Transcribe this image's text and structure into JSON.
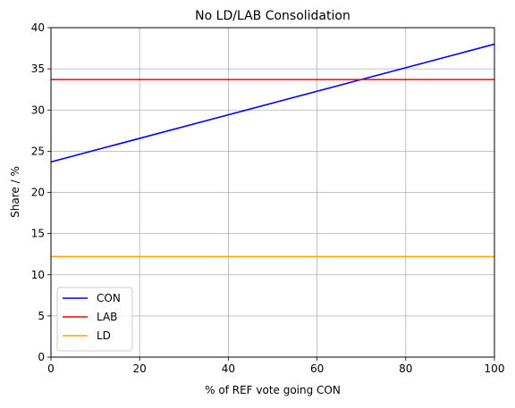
{
  "chart_data": {
    "type": "line",
    "title": "No LD/LAB Consolidation",
    "xlabel": "% of REF vote going CON",
    "ylabel": "Share / %",
    "xlim": [
      0,
      100
    ],
    "ylim": [
      0,
      40
    ],
    "xticks": [
      0,
      20,
      40,
      60,
      80,
      100
    ],
    "yticks": [
      0,
      5,
      10,
      15,
      20,
      25,
      30,
      35,
      40
    ],
    "grid": true,
    "legend_position": "lower-left",
    "x": [
      0,
      100
    ],
    "series": [
      {
        "name": "CON",
        "color": "#0000ff",
        "values": [
          23.7,
          38.0
        ]
      },
      {
        "name": "LAB",
        "color": "#ff0000",
        "values": [
          33.7,
          33.7
        ]
      },
      {
        "name": "LD",
        "color": "#ffa500",
        "values": [
          12.2,
          12.2
        ]
      }
    ]
  }
}
